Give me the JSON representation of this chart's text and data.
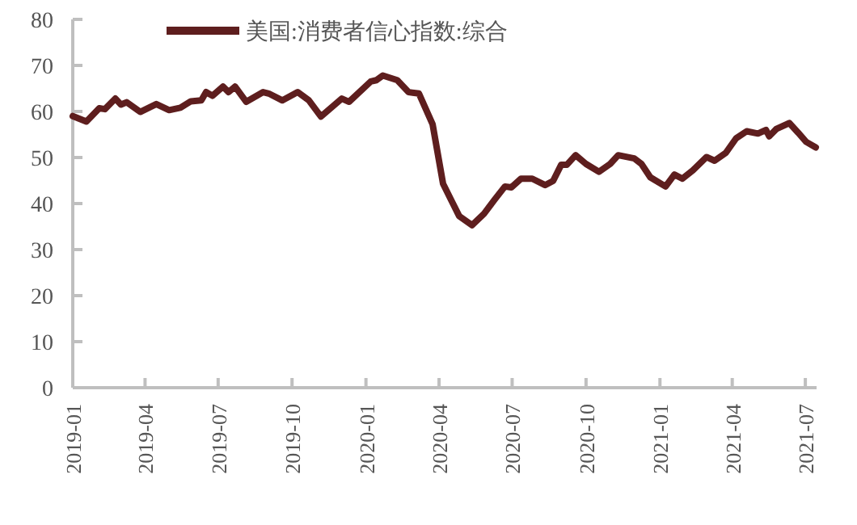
{
  "chart_data": {
    "type": "line",
    "xlim": [
      "2019-01-01",
      "2021-07-15"
    ],
    "ylim": [
      0,
      80
    ],
    "yticks": [
      0,
      10,
      20,
      30,
      40,
      50,
      60,
      70,
      80
    ],
    "xticks": [
      "2019-01",
      "2019-04",
      "2019-07",
      "2019-10",
      "2020-01",
      "2020-04",
      "2020-07",
      "2020-10",
      "2021-01",
      "2021-04",
      "2021-07"
    ],
    "legend": "top",
    "grid": false,
    "marker": "none",
    "line_style": "solid",
    "series": [
      {
        "name": "美国:消费者信心指数:综合",
        "color": "#5e1e1e",
        "x": [
          "2019-01-01",
          "2019-01-18",
          "2019-02-03",
          "2019-02-10",
          "2019-02-23",
          "2019-03-02",
          "2019-03-09",
          "2019-03-26",
          "2019-04-15",
          "2019-05-01",
          "2019-05-15",
          "2019-05-28",
          "2019-06-10",
          "2019-06-16",
          "2019-06-24",
          "2019-07-07",
          "2019-07-14",
          "2019-07-22",
          "2019-08-05",
          "2019-08-26",
          "2019-09-02",
          "2019-09-19",
          "2019-10-08",
          "2019-10-22",
          "2019-11-06",
          "2019-12-02",
          "2019-12-11",
          "2020-01-07",
          "2020-01-14",
          "2020-01-22",
          "2020-02-09",
          "2020-02-23",
          "2020-03-07",
          "2020-03-24",
          "2020-04-06",
          "2020-04-16",
          "2020-04-26",
          "2020-05-12",
          "2020-05-27",
          "2020-06-09",
          "2020-06-22",
          "2020-06-30",
          "2020-07-12",
          "2020-07-26",
          "2020-08-11",
          "2020-08-21",
          "2020-08-31",
          "2020-09-07",
          "2020-09-18",
          "2020-10-01",
          "2020-10-17",
          "2020-10-31",
          "2020-11-10",
          "2020-11-30",
          "2020-12-09",
          "2020-12-20",
          "2021-01-08",
          "2021-01-19",
          "2021-01-29",
          "2021-02-11",
          "2021-02-28",
          "2021-03-10",
          "2021-03-24",
          "2021-04-06",
          "2021-04-19",
          "2021-05-03",
          "2021-05-13",
          "2021-05-17",
          "2021-05-26",
          "2021-06-11",
          "2021-06-22",
          "2021-07-02",
          "2021-07-14"
        ],
        "values": [
          59,
          57.8,
          60.7,
          60.5,
          62.8,
          61.5,
          62,
          59.9,
          61.6,
          60.3,
          60.8,
          62.2,
          62.4,
          64.2,
          63.4,
          65.4,
          64.2,
          65.4,
          62.1,
          64.2,
          63.9,
          62.4,
          64.2,
          62.4,
          58.9,
          62.8,
          62.1,
          66.5,
          66.8,
          67.8,
          66.8,
          64.2,
          63.9,
          57.2,
          44.3,
          40.8,
          37.3,
          35.3,
          37.8,
          40.8,
          43.7,
          43.5,
          45.4,
          45.4,
          44.0,
          44.9,
          48.4,
          48.4,
          50.5,
          48.6,
          46.9,
          48.6,
          50.5,
          49.8,
          48.6,
          45.7,
          43.7,
          46.3,
          45.4,
          47.2,
          50.1,
          49.3,
          51.0,
          54.2,
          55.7,
          55.2,
          56.0,
          54.6,
          56.2,
          57.5,
          55.4,
          53.4,
          52.2
        ]
      }
    ]
  }
}
